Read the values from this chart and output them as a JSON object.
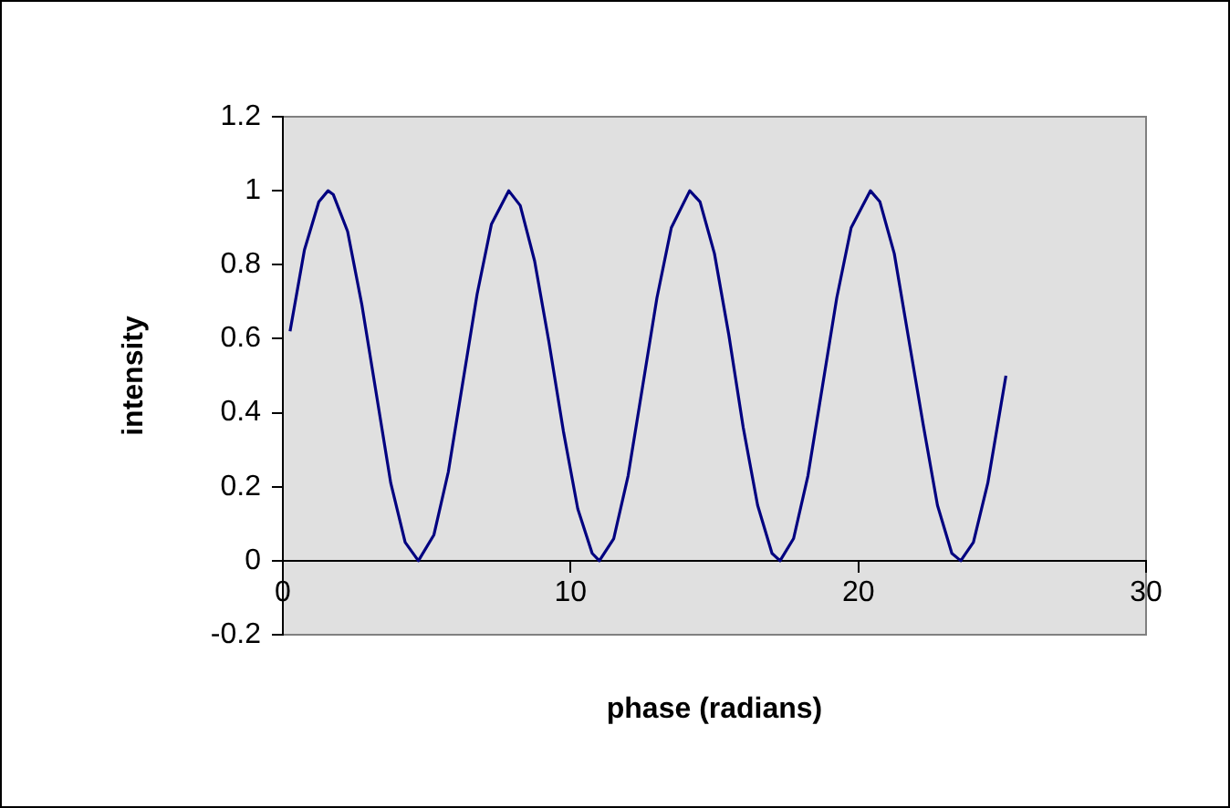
{
  "chart_data": {
    "type": "line",
    "xlabel": "phase (radians)",
    "ylabel": "intensity",
    "series": [
      {
        "color": "#000080",
        "x": [
          0.25,
          0.75,
          1.25,
          1.57,
          1.75,
          2.25,
          2.75,
          3.25,
          3.75,
          4.25,
          4.71,
          5.25,
          5.75,
          6.25,
          6.75,
          7.25,
          7.85,
          8.25,
          8.75,
          9.25,
          9.75,
          10.25,
          10.75,
          11.0,
          11.5,
          12.0,
          12.5,
          13.0,
          13.5,
          14.14,
          14.5,
          15.0,
          15.5,
          16.0,
          16.5,
          17.0,
          17.28,
          17.75,
          18.25,
          18.75,
          19.25,
          19.75,
          20.42,
          20.75,
          21.25,
          21.75,
          22.25,
          22.75,
          23.25,
          23.56,
          24.0,
          24.5,
          25.13
        ],
        "values": [
          0.62,
          0.84,
          0.97,
          1.0,
          0.99,
          0.89,
          0.69,
          0.45,
          0.21,
          0.05,
          0.0,
          0.07,
          0.24,
          0.48,
          0.72,
          0.91,
          1.0,
          0.96,
          0.81,
          0.59,
          0.35,
          0.14,
          0.02,
          0.0,
          0.06,
          0.23,
          0.47,
          0.71,
          0.9,
          1.0,
          0.97,
          0.83,
          0.61,
          0.36,
          0.15,
          0.02,
          0.0,
          0.06,
          0.23,
          0.47,
          0.71,
          0.9,
          1.0,
          0.97,
          0.83,
          0.6,
          0.37,
          0.15,
          0.02,
          0.0,
          0.05,
          0.21,
          0.5
        ]
      }
    ],
    "xlim": [
      0,
      30
    ],
    "xticks": [
      0,
      10,
      20,
      30
    ],
    "ylim": [
      -0.2,
      1.2
    ],
    "yticks": [
      -0.2,
      0,
      0.2,
      0.4,
      0.6,
      0.8,
      1,
      1.2
    ],
    "grid": false,
    "legend": false,
    "marker": "none",
    "line_style": "solid"
  }
}
